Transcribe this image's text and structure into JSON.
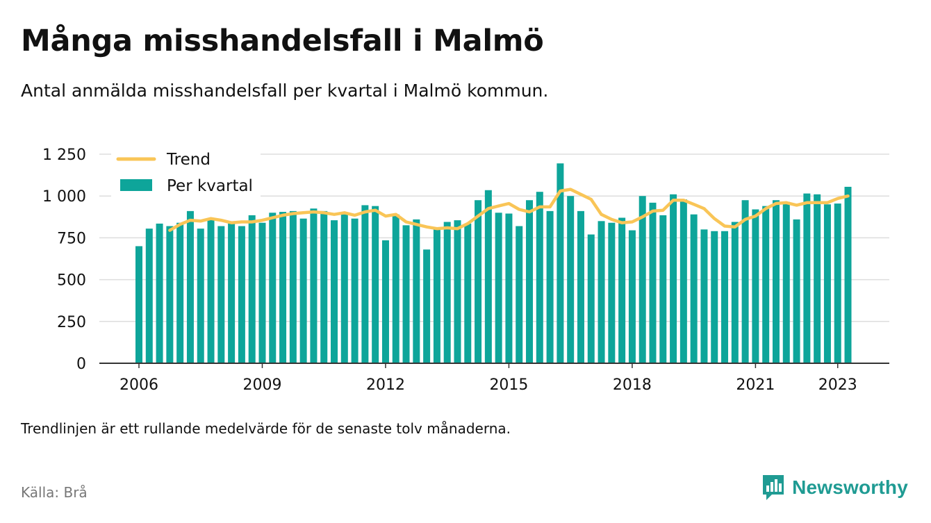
{
  "header": {
    "title": "Många misshandelsfall i Malmö",
    "subtitle": "Antal anmälda misshandelsfall per kvartal i Malmö kommun."
  },
  "footer": {
    "note": "Trendlinjen är ett rullande medelvärde för de senaste tolv månaderna.",
    "source": "Källa: Brå",
    "brand": "Newsworthy"
  },
  "colors": {
    "bars": "#0ea59a",
    "trend": "#f9c557",
    "grid": "#dddddd",
    "axis": "#333333",
    "brand": "#1f9b93"
  },
  "icons": {
    "brand_logo": "newsworthy-logo-icon"
  },
  "chart_data": {
    "type": "bar",
    "x_unit": "quarter",
    "x_ticks": [
      "2006",
      "2009",
      "2012",
      "2015",
      "2018",
      "2021",
      "2023"
    ],
    "y_ticks": [
      "0",
      "250",
      "500",
      "750",
      "1 000",
      "1 250"
    ],
    "ylim": [
      0,
      1250
    ],
    "grid": true,
    "legend_position": "top-left",
    "legend": [
      "Trend",
      "Per kvartal"
    ],
    "categories": [
      "2006 Q1",
      "2006 Q2",
      "2006 Q3",
      "2006 Q4",
      "2007 Q1",
      "2007 Q2",
      "2007 Q3",
      "2007 Q4",
      "2008 Q1",
      "2008 Q2",
      "2008 Q3",
      "2008 Q4",
      "2009 Q1",
      "2009 Q2",
      "2009 Q3",
      "2009 Q4",
      "2010 Q1",
      "2010 Q2",
      "2010 Q3",
      "2010 Q4",
      "2011 Q1",
      "2011 Q2",
      "2011 Q3",
      "2011 Q4",
      "2012 Q1",
      "2012 Q2",
      "2012 Q3",
      "2012 Q4",
      "2013 Q1",
      "2013 Q2",
      "2013 Q3",
      "2013 Q4",
      "2014 Q1",
      "2014 Q2",
      "2014 Q3",
      "2014 Q4",
      "2015 Q1",
      "2015 Q2",
      "2015 Q3",
      "2015 Q4",
      "2016 Q1",
      "2016 Q2",
      "2016 Q3",
      "2016 Q4",
      "2017 Q1",
      "2017 Q2",
      "2017 Q3",
      "2017 Q4",
      "2018 Q1",
      "2018 Q2",
      "2018 Q3",
      "2018 Q4",
      "2019 Q1",
      "2019 Q2",
      "2019 Q3",
      "2019 Q4",
      "2020 Q1",
      "2020 Q2",
      "2020 Q3",
      "2020 Q4",
      "2021 Q1",
      "2021 Q2",
      "2021 Q3",
      "2021 Q4",
      "2022 Q1",
      "2022 Q2",
      "2022 Q3",
      "2022 Q4",
      "2023 Q1",
      "2023 Q2"
    ],
    "series": [
      {
        "name": "Per kvartal",
        "values": [
          700,
          805,
          835,
          820,
          840,
          910,
          805,
          860,
          820,
          835,
          820,
          885,
          840,
          900,
          905,
          910,
          865,
          925,
          910,
          855,
          890,
          865,
          945,
          940,
          735,
          890,
          825,
          860,
          680,
          810,
          845,
          855,
          835,
          975,
          1035,
          900,
          895,
          820,
          975,
          1025,
          910,
          1195,
          1000,
          910,
          770,
          850,
          840,
          870,
          795,
          1000,
          960,
          885,
          1010,
          980,
          890,
          800,
          790,
          790,
          845,
          975,
          920,
          940,
          975,
          965,
          860,
          1015,
          1010,
          950,
          955,
          1055
        ]
      },
      {
        "name": "Trend",
        "values": [
          null,
          null,
          null,
          795,
          830,
          855,
          850,
          865,
          855,
          840,
          845,
          845,
          855,
          870,
          885,
          895,
          900,
          905,
          900,
          890,
          900,
          885,
          905,
          915,
          880,
          890,
          845,
          830,
          815,
          805,
          810,
          805,
          835,
          880,
          925,
          940,
          955,
          920,
          905,
          935,
          935,
          1030,
          1040,
          1010,
          980,
          890,
          860,
          840,
          845,
          875,
          910,
          915,
          975,
          975,
          950,
          925,
          865,
          820,
          815,
          860,
          880,
          925,
          955,
          960,
          945,
          960,
          960,
          960,
          985,
          1000
        ]
      }
    ]
  }
}
